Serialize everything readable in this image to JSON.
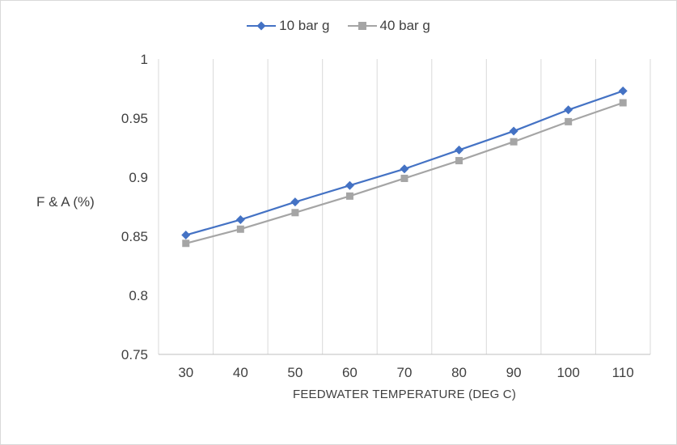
{
  "chart_data": {
    "type": "line",
    "x": [
      30,
      40,
      50,
      60,
      70,
      80,
      90,
      100,
      110
    ],
    "series": [
      {
        "name": "10 bar g",
        "color": "#4472c4",
        "marker": "diamond",
        "values": [
          0.851,
          0.864,
          0.879,
          0.893,
          0.907,
          0.923,
          0.939,
          0.957,
          0.973
        ]
      },
      {
        "name": "40 bar g",
        "color": "#a5a5a5",
        "marker": "square",
        "values": [
          0.844,
          0.856,
          0.87,
          0.884,
          0.899,
          0.914,
          0.93,
          0.947,
          0.963
        ]
      }
    ],
    "title": "",
    "xlabel": "FEEDWATER TEMPERATURE (DEG C)",
    "ylabel": "F & A (%)",
    "ylim": [
      0.75,
      1
    ],
    "yticks": [
      0.75,
      0.8,
      0.85,
      0.9,
      0.95,
      1
    ],
    "grid": "vertical-only",
    "legend_position": "top-center",
    "colors": {
      "gridline": "#d9d9d9",
      "axis_line": "#bfbfbf",
      "text": "#404040"
    }
  }
}
